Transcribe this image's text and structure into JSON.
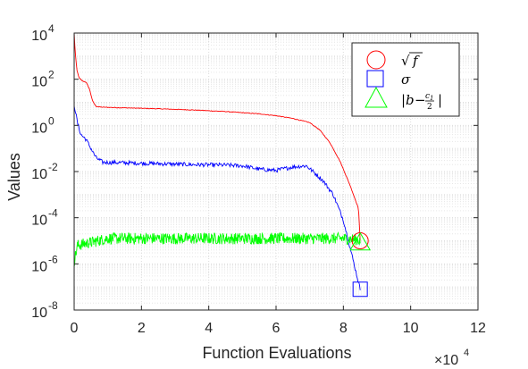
{
  "chart_data": {
    "type": "line",
    "xlabel": "Function Evaluations",
    "ylabel": "Values",
    "x_multiplier_label": {
      "base": "×10",
      "exponent": "4"
    },
    "xlim": [
      0,
      12
    ],
    "ylim_log10": [
      -8,
      4
    ],
    "x_scale": "linear (×10^4)",
    "y_scale": "log",
    "grid": true,
    "legend_position": "top-right",
    "x_tick_labels": [
      "0",
      "2",
      "4",
      "6",
      "8",
      "10",
      "12"
    ],
    "y_tick_labels": [
      {
        "base": "10",
        "exp": "-8"
      },
      {
        "base": "10",
        "exp": "-6"
      },
      {
        "base": "10",
        "exp": "-4"
      },
      {
        "base": "10",
        "exp": "-2"
      },
      {
        "base": "10",
        "exp": "0"
      },
      {
        "base": "10",
        "exp": "2"
      },
      {
        "base": "10",
        "exp": "4"
      }
    ],
    "series": [
      {
        "name": "√f",
        "color": "#ff0000",
        "marker": "circle",
        "points": [
          [
            0.0,
            4.0
          ],
          [
            0.03,
            3.2
          ],
          [
            0.08,
            2.4
          ],
          [
            0.15,
            2.05
          ],
          [
            0.25,
            1.92
          ],
          [
            0.35,
            1.88
          ],
          [
            0.45,
            1.6
          ],
          [
            0.55,
            1.05
          ],
          [
            0.65,
            0.82
          ],
          [
            0.8,
            0.79
          ],
          [
            1.5,
            0.76
          ],
          [
            2.5,
            0.72
          ],
          [
            3.5,
            0.67
          ],
          [
            4.5,
            0.6
          ],
          [
            5.5,
            0.5
          ],
          [
            6.0,
            0.42
          ],
          [
            6.5,
            0.3
          ],
          [
            7.0,
            0.12
          ],
          [
            7.3,
            -0.2
          ],
          [
            7.6,
            -0.75
          ],
          [
            7.9,
            -1.55
          ],
          [
            8.2,
            -2.6
          ],
          [
            8.45,
            -3.6
          ],
          [
            8.5,
            -5.0
          ]
        ],
        "final_marker": [
          8.5,
          -5.0
        ]
      },
      {
        "name": "σ",
        "color": "#0000ff",
        "marker": "square",
        "points": [
          [
            0.0,
            0.9
          ],
          [
            0.04,
            0.6
          ],
          [
            0.1,
            0.1
          ],
          [
            0.2,
            -0.4
          ],
          [
            0.35,
            -0.6
          ],
          [
            0.5,
            -1.0
          ],
          [
            0.65,
            -1.4
          ],
          [
            0.85,
            -1.6
          ],
          [
            1.5,
            -1.62
          ],
          [
            2.5,
            -1.66
          ],
          [
            3.5,
            -1.7
          ],
          [
            4.5,
            -1.72
          ],
          [
            5.0,
            -1.75
          ],
          [
            5.5,
            -1.9
          ],
          [
            6.0,
            -1.95
          ],
          [
            6.5,
            -1.8
          ],
          [
            6.9,
            -1.75
          ],
          [
            7.1,
            -2.0
          ],
          [
            7.4,
            -2.4
          ],
          [
            7.7,
            -3.0
          ],
          [
            8.0,
            -4.1
          ],
          [
            8.2,
            -5.3
          ],
          [
            8.4,
            -6.5
          ],
          [
            8.5,
            -7.1
          ]
        ],
        "final_marker": [
          8.5,
          -7.1
        ]
      },
      {
        "name": "|b − c1/2|",
        "color": "#00ff00",
        "marker": "triangle",
        "points": [
          [
            0.0,
            -5.9
          ],
          [
            0.1,
            -5.2
          ],
          [
            1.0,
            -4.9
          ],
          [
            3.0,
            -4.9
          ],
          [
            5.0,
            -4.9
          ],
          [
            7.0,
            -4.9
          ],
          [
            8.0,
            -4.9
          ],
          [
            8.4,
            -4.95
          ],
          [
            8.5,
            -5.0
          ]
        ],
        "noise": 0.25,
        "final_marker": [
          8.5,
          -5.05
        ]
      }
    ]
  }
}
